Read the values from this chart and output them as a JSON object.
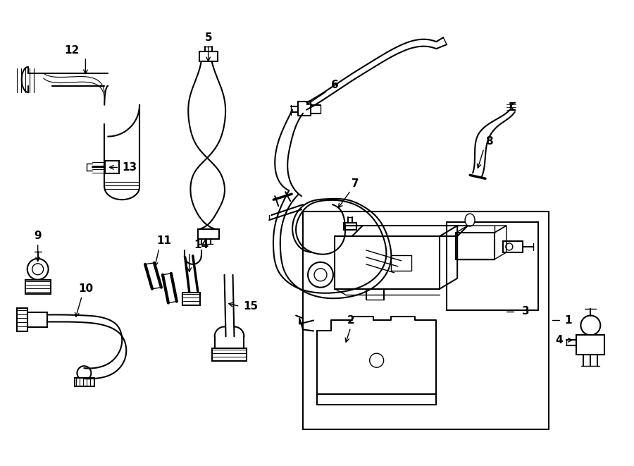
{
  "background_color": "#ffffff",
  "fig_width": 9.0,
  "fig_height": 6.61,
  "dpi": 100,
  "lw_thin": 1.0,
  "lw_med": 1.5,
  "lw_thick": 2.5
}
